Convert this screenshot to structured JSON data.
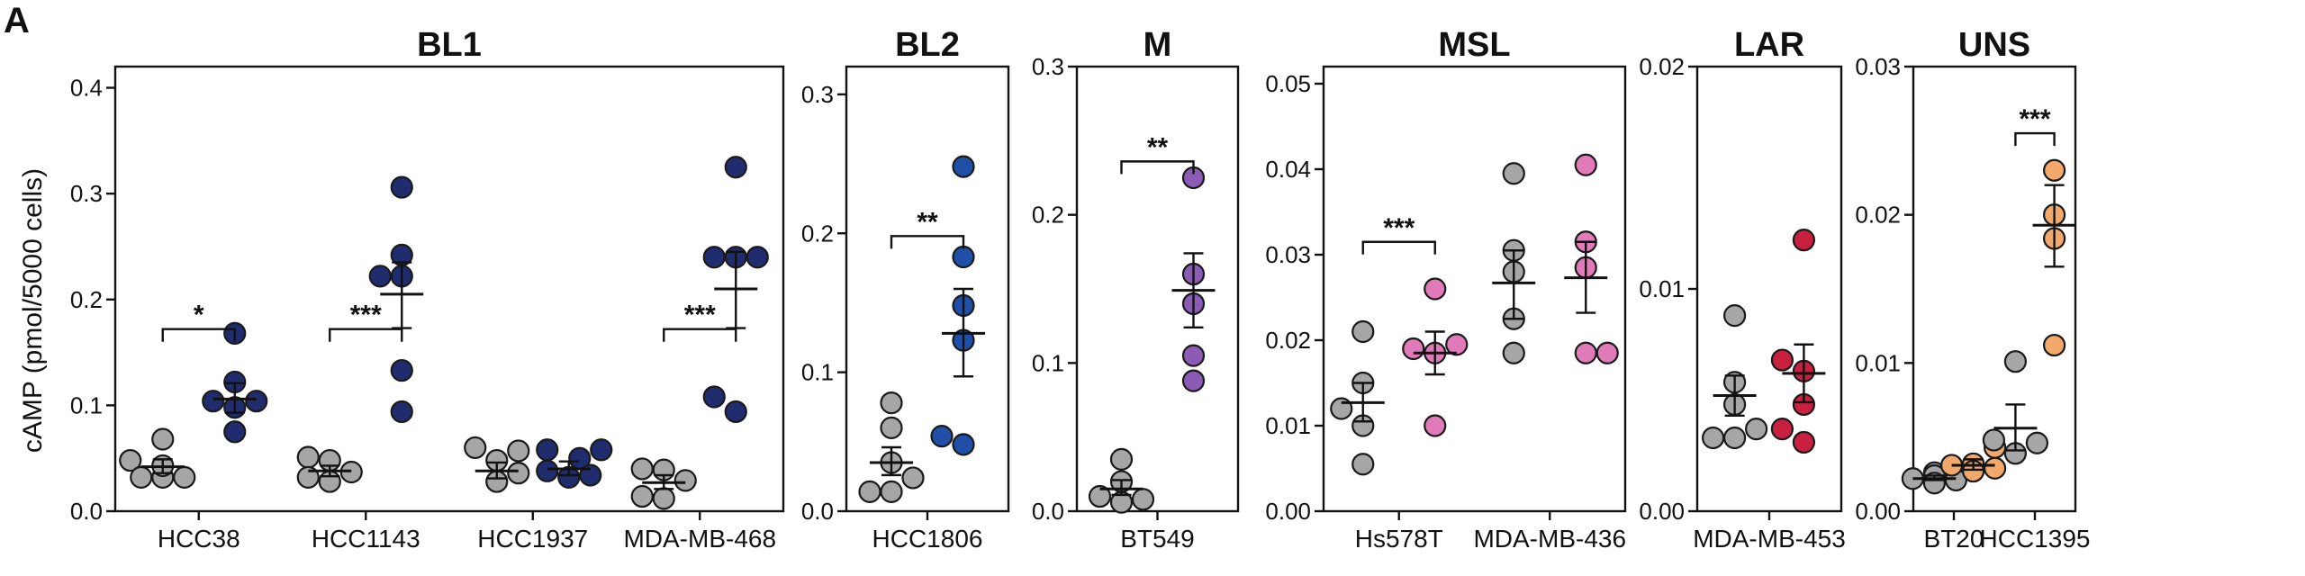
{
  "figure": {
    "panel_letter": "A",
    "ylabel": "cAMP (pmol/5000 cells)"
  },
  "colors": {
    "control": "#a6a6a6",
    "stroke": "#1a1a1a"
  },
  "chart_data": [
    {
      "type": "scatter",
      "title": "BL1",
      "ylim": [
        0,
        0.42
      ],
      "yticks": [
        "0.0",
        "0.1",
        "0.2",
        "0.3",
        "0.4"
      ],
      "tick_values": [
        0,
        0.1,
        0.2,
        0.3,
        0.4
      ],
      "color": "#1f2d6e",
      "groups": [
        {
          "category": "HCC38",
          "significance": "*",
          "bracket_y": 0.172,
          "control": {
            "values": [
              0.068,
              0.048,
              0.032,
              0.043,
              0.032,
              0.032
            ],
            "mean": 0.042,
            "sem_lower": 0.036,
            "sem_upper": 0.049
          },
          "treated": {
            "values": [
              0.168,
              0.122,
              0.104,
              0.104,
              0.098,
              0.075
            ],
            "mean": 0.106,
            "sem_lower": 0.093,
            "sem_upper": 0.121
          }
        },
        {
          "category": "HCC1143",
          "significance": "***",
          "bracket_y": 0.172,
          "control": {
            "values": [
              0.051,
              0.048,
              0.037,
              0.032,
              0.028
            ],
            "mean": 0.038,
            "sem_lower": 0.033,
            "sem_upper": 0.043
          },
          "treated": {
            "values": [
              0.306,
              0.242,
              0.222,
              0.222,
              0.133,
              0.094
            ],
            "mean": 0.205,
            "sem_lower": 0.173,
            "sem_upper": 0.235
          }
        },
        {
          "category": "HCC1937",
          "significance": "",
          "bracket_y": null,
          "control": {
            "values": [
              0.06,
              0.057,
              0.048,
              0.036,
              0.028
            ],
            "mean": 0.038,
            "sem_lower": 0.031,
            "sem_upper": 0.046
          },
          "treated": {
            "values": [
              0.058,
              0.058,
              0.05,
              0.038,
              0.034,
              0.032
            ],
            "mean": 0.04,
            "sem_lower": 0.034,
            "sem_upper": 0.047
          }
        },
        {
          "category": "MDA-MB-468",
          "significance": "***",
          "bracket_y": 0.172,
          "control": {
            "values": [
              0.04,
              0.039,
              0.029,
              0.014,
              0.012
            ],
            "mean": 0.027,
            "sem_lower": 0.021,
            "sem_upper": 0.034
          },
          "treated": {
            "values": [
              0.325,
              0.24,
              0.24,
              0.24,
              0.108,
              0.094
            ],
            "mean": 0.21,
            "sem_lower": 0.173,
            "sem_upper": 0.245
          }
        }
      ]
    },
    {
      "type": "scatter",
      "title": "BL2",
      "ylim": [
        0,
        0.32
      ],
      "yticks": [
        "0.0",
        "0.1",
        "0.2",
        "0.3"
      ],
      "tick_values": [
        0,
        0.1,
        0.2,
        0.3
      ],
      "color": "#1f4fa6",
      "groups": [
        {
          "category": "HCC1806",
          "significance": "**",
          "bracket_y": 0.198,
          "control": {
            "values": [
              0.078,
              0.06,
              0.035,
              0.024,
              0.014,
              0.014
            ],
            "mean": 0.035,
            "sem_lower": 0.026,
            "sem_upper": 0.046
          },
          "treated": {
            "values": [
              0.248,
              0.183,
              0.148,
              0.123,
              0.054,
              0.048
            ],
            "mean": 0.128,
            "sem_lower": 0.097,
            "sem_upper": 0.16
          }
        }
      ]
    },
    {
      "type": "scatter",
      "title": "M",
      "ylim": [
        0,
        0.3
      ],
      "yticks": [
        "0.0",
        "0.1",
        "0.2",
        "0.3"
      ],
      "tick_values": [
        0,
        0.1,
        0.2,
        0.3
      ],
      "color": "#8b5bb5",
      "groups": [
        {
          "category": "BT549",
          "significance": "**",
          "bracket_y": 0.236,
          "control": {
            "values": [
              0.035,
              0.02,
              0.01,
              0.008,
              0.006
            ],
            "mean": 0.015,
            "sem_lower": 0.011,
            "sem_upper": 0.021
          },
          "treated": {
            "values": [
              0.225,
              0.16,
              0.14,
              0.105,
              0.088
            ],
            "mean": 0.149,
            "sem_lower": 0.124,
            "sem_upper": 0.174
          }
        }
      ]
    },
    {
      "type": "scatter",
      "title": "MSL",
      "ylim": [
        0,
        0.052
      ],
      "yticks": [
        "0.00",
        "0.01",
        "0.02",
        "0.03",
        "0.04",
        "0.05"
      ],
      "tick_values": [
        0,
        0.01,
        0.02,
        0.03,
        0.04,
        0.05
      ],
      "color": "#e07ab8",
      "groups": [
        {
          "category": "Hs578T",
          "significance": "***",
          "bracket_y": 0.0315,
          "control": {
            "values": [
              0.021,
              0.015,
              0.012,
              0.01,
              0.0055
            ],
            "mean": 0.0127,
            "sem_lower": 0.0105,
            "sem_upper": 0.015
          },
          "treated": {
            "values": [
              0.026,
              0.0195,
              0.019,
              0.0185,
              0.01
            ],
            "mean": 0.0185,
            "sem_lower": 0.016,
            "sem_upper": 0.021
          }
        },
        {
          "category": "MDA-MB-436",
          "significance": "",
          "bracket_y": null,
          "control": {
            "values": [
              0.0395,
              0.0305,
              0.028,
              0.0225,
              0.0185
            ],
            "mean": 0.0267,
            "sem_lower": 0.0225,
            "sem_upper": 0.0305
          },
          "treated": {
            "values": [
              0.0405,
              0.0315,
              0.0285,
              0.0185,
              0.0185
            ],
            "mean": 0.0273,
            "sem_lower": 0.0232,
            "sem_upper": 0.0315
          }
        }
      ]
    },
    {
      "type": "scatter",
      "title": "LAR",
      "ylim": [
        0,
        0.02
      ],
      "yticks": [
        "0.00",
        "0.01",
        "0.02"
      ],
      "tick_values": [
        0,
        0.01,
        0.02
      ],
      "color": "#c8203e",
      "groups": [
        {
          "category": "MDA-MB-453",
          "significance": "",
          "bracket_y": null,
          "control": {
            "values": [
              0.0088,
              0.0058,
              0.0048,
              0.0037,
              0.0033,
              0.0033
            ],
            "mean": 0.0052,
            "sem_lower": 0.0043,
            "sem_upper": 0.0061
          },
          "treated": {
            "values": [
              0.0122,
              0.0068,
              0.0063,
              0.0048,
              0.0037,
              0.0031
            ],
            "mean": 0.0062,
            "sem_lower": 0.0049,
            "sem_upper": 0.0075
          }
        }
      ]
    },
    {
      "type": "scatter",
      "title": "UNS",
      "ylim": [
        0,
        0.03
      ],
      "yticks": [
        "0.00",
        "0.01",
        "0.02",
        "0.03"
      ],
      "tick_values": [
        0,
        0.01,
        0.02,
        0.03
      ],
      "color": "#f2a86a",
      "groups": [
        {
          "category": "BT20",
          "significance": "",
          "bracket_y": null,
          "control": {
            "values": [
              0.0026,
              0.0024,
              0.0022,
              0.0021,
              0.0019
            ],
            "mean": 0.0022,
            "sem_lower": 0.0021,
            "sem_upper": 0.0024
          },
          "treated": {
            "values": [
              0.0043,
              0.0032,
              0.0031,
              0.0029,
              0.0027
            ],
            "mean": 0.0031,
            "sem_lower": 0.0028,
            "sem_upper": 0.0035
          }
        },
        {
          "category": "HCC1395",
          "significance": "***",
          "bracket_y": 0.0255,
          "control": {
            "values": [
              0.0101,
              0.0048,
              0.0046,
              0.0039
            ],
            "mean": 0.0056,
            "sem_lower": 0.0041,
            "sem_upper": 0.0072
          },
          "treated": {
            "values": [
              0.023,
              0.02,
              0.0184,
              0.0112
            ],
            "mean": 0.0193,
            "sem_lower": 0.0165,
            "sem_upper": 0.022
          }
        }
      ]
    }
  ]
}
